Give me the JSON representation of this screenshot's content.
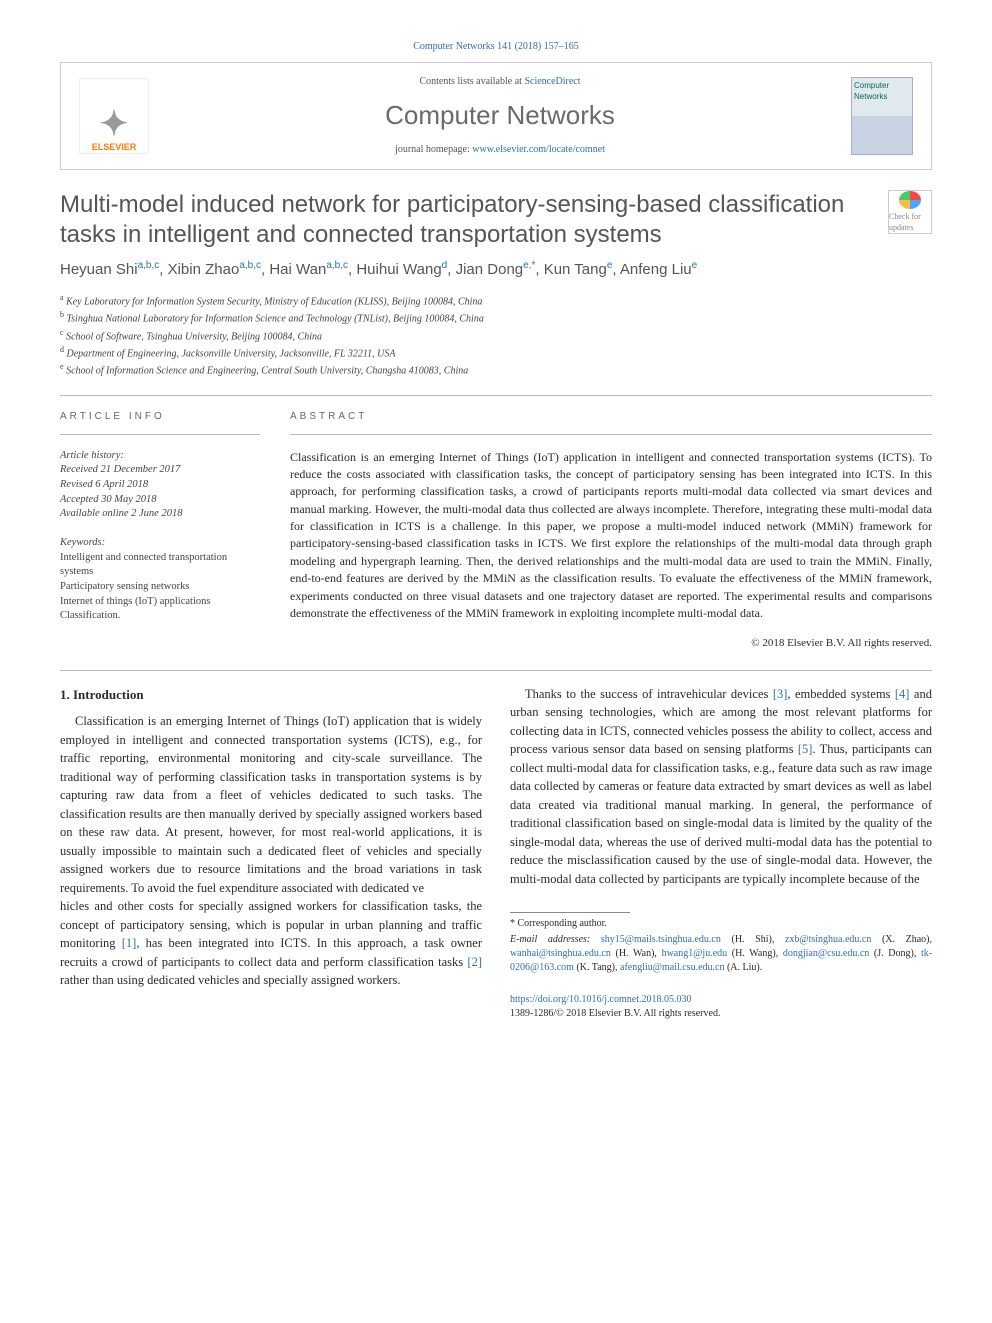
{
  "top_citation": "Computer Networks 141 (2018) 157–165",
  "header": {
    "contents_prefix": "Contents lists available at ",
    "contents_link": "ScienceDirect",
    "journal": "Computer Networks",
    "homepage_prefix": "journal homepage: ",
    "homepage_url": "www.elsevier.com/locate/comnet",
    "publisher": "ELSEVIER",
    "cover_label": "Computer Networks"
  },
  "article": {
    "title": "Multi-model induced network for participatory-sensing-based classification tasks in intelligent and connected transportation systems",
    "crossmark": "Check for updates",
    "authors_html": "Heyuan Shi a,b,c, Xibin Zhao a,b,c, Hai Wan a,b,c, Huihui Wang d, Jian Dong e,*, Kun Tang e, Anfeng Liu e",
    "authors": [
      {
        "name": "Heyuan Shi",
        "sup": "a,b,c"
      },
      {
        "name": "Xibin Zhao",
        "sup": "a,b,c"
      },
      {
        "name": "Hai Wan",
        "sup": "a,b,c"
      },
      {
        "name": "Huihui Wang",
        "sup": "d"
      },
      {
        "name": "Jian Dong",
        "sup": "e,*"
      },
      {
        "name": "Kun Tang",
        "sup": "e"
      },
      {
        "name": "Anfeng Liu",
        "sup": "e"
      }
    ],
    "affiliations": [
      {
        "sup": "a",
        "text": "Key Laboratory for Information System Security, Ministry of Education (KLISS), Beijing 100084, China"
      },
      {
        "sup": "b",
        "text": "Tsinghua National Laboratory for Information Science and Technology (TNList), Beijing 100084, China"
      },
      {
        "sup": "c",
        "text": "School of Software, Tsinghua University, Beijing 100084, China"
      },
      {
        "sup": "d",
        "text": "Department of Engineering, Jacksonville University, Jacksonville, FL 32211, USA"
      },
      {
        "sup": "e",
        "text": "School of Information Science and Engineering, Central South University, Changsha 410083, China"
      }
    ]
  },
  "info": {
    "heading": "ARTICLE INFO",
    "history_label": "Article history:",
    "history": [
      "Received 21 December 2017",
      "Revised 6 April 2018",
      "Accepted 30 May 2018",
      "Available online 2 June 2018"
    ],
    "keywords_label": "Keywords:",
    "keywords": [
      "Intelligent and connected transportation systems",
      "Participatory sensing networks",
      "Internet of things (IoT) applications",
      "Classification."
    ]
  },
  "abstract": {
    "heading": "ABSTRACT",
    "text": "Classification is an emerging Internet of Things (IoT) application in intelligent and connected transportation systems (ICTS). To reduce the costs associated with classification tasks, the concept of participatory sensing has been integrated into ICTS. In this approach, for performing classification tasks, a crowd of participants reports multi-modal data collected via smart devices and manual marking. However, the multi-modal data thus collected are always incomplete. Therefore, integrating these multi-modal data for classification in ICTS is a challenge. In this paper, we propose a multi-model induced network (MMiN) framework for participatory-sensing-based classification tasks in ICTS. We first explore the relationships of the multi-modal data through graph modeling and hypergraph learning. Then, the derived relationships and the multi-modal data are used to train the MMiN. Finally, end-to-end features are derived by the MMiN as the classification results. To evaluate the effectiveness of the MMiN framework, experiments conducted on three visual datasets and one trajectory dataset are reported. The experimental results and comparisons demonstrate the effectiveness of the MMiN framework in exploiting incomplete multi-modal data.",
    "copyright": "© 2018 Elsevier B.V. All rights reserved."
  },
  "section1": {
    "heading": "1. Introduction",
    "para1": "Classification is an emerging Internet of Things (IoT) application that is widely employed in intelligent and connected transportation systems (ICTS), e.g., for traffic reporting, environmental monitoring and city-scale surveillance. The traditional way of performing classification tasks in transportation systems is by capturing raw data from a fleet of vehicles dedicated to such tasks. The classification results are then manually derived by specially assigned workers based on these raw data. At present, however, for most real-world applications, it is usually impossible to maintain such a dedicated fleet of vehicles and specially assigned workers due to resource limitations and the broad variations in task requirements. To avoid the fuel expenditure associated with dedicated ve",
    "para1b": "hicles and other costs for specially assigned workers for classification tasks, the concept of participatory sensing, which is popular in urban planning and traffic monitoring [1], has been integrated into ICTS. In this approach, a task owner recruits a crowd of participants to collect data and perform classification tasks [2] rather than using dedicated vehicles and specially assigned workers.",
    "para2": "Thanks to the success of intravehicular devices [3], embedded systems [4] and urban sensing technologies, which are among the most relevant platforms for collecting data in ICTS, connected vehicles possess the ability to collect, access and process various sensor data based on sensing platforms [5]. Thus, participants can collect multi-modal data for classification tasks, e.g., feature data such as raw image data collected by cameras or feature data extracted by smart devices as well as label data created via traditional manual marking. In general, the performance of traditional classification based on single-modal data is limited by the quality of the single-modal data, whereas the use of derived multi-modal data has the potential to reduce the misclassification caused by the use of single-modal data. However, the multi-modal data collected by participants are typically incomplete because of the"
  },
  "footnotes": {
    "corresponding": "* Corresponding author.",
    "emails_label": "E-mail addresses:",
    "emails": [
      {
        "email": "shy15@mails.tsinghua.edu.cn",
        "who": "(H. Shi)"
      },
      {
        "email": "zxb@tsinghua.edu.cn",
        "who": "(X. Zhao)"
      },
      {
        "email": "wanhai@tsinghua.edu.cn",
        "who": "(H. Wan)"
      },
      {
        "email": "hwang1@ju.edu",
        "who": "(H. Wang)"
      },
      {
        "email": "dongjian@csu.edu.cn",
        "who": "(J. Dong)"
      },
      {
        "email": "tk-0206@163.com",
        "who": "(K. Tang)"
      },
      {
        "email": "afengliu@mail.csu.edu.cn",
        "who": "(A. Liu)"
      }
    ],
    "doi": "https://doi.org/10.1016/j.comnet.2018.05.030",
    "issn_line": "1389-1286/© 2018 Elsevier B.V. All rights reserved."
  },
  "colors": {
    "link": "#2f6fb0",
    "heading_gray": "#555555",
    "brand_orange": "#ff7a00"
  }
}
